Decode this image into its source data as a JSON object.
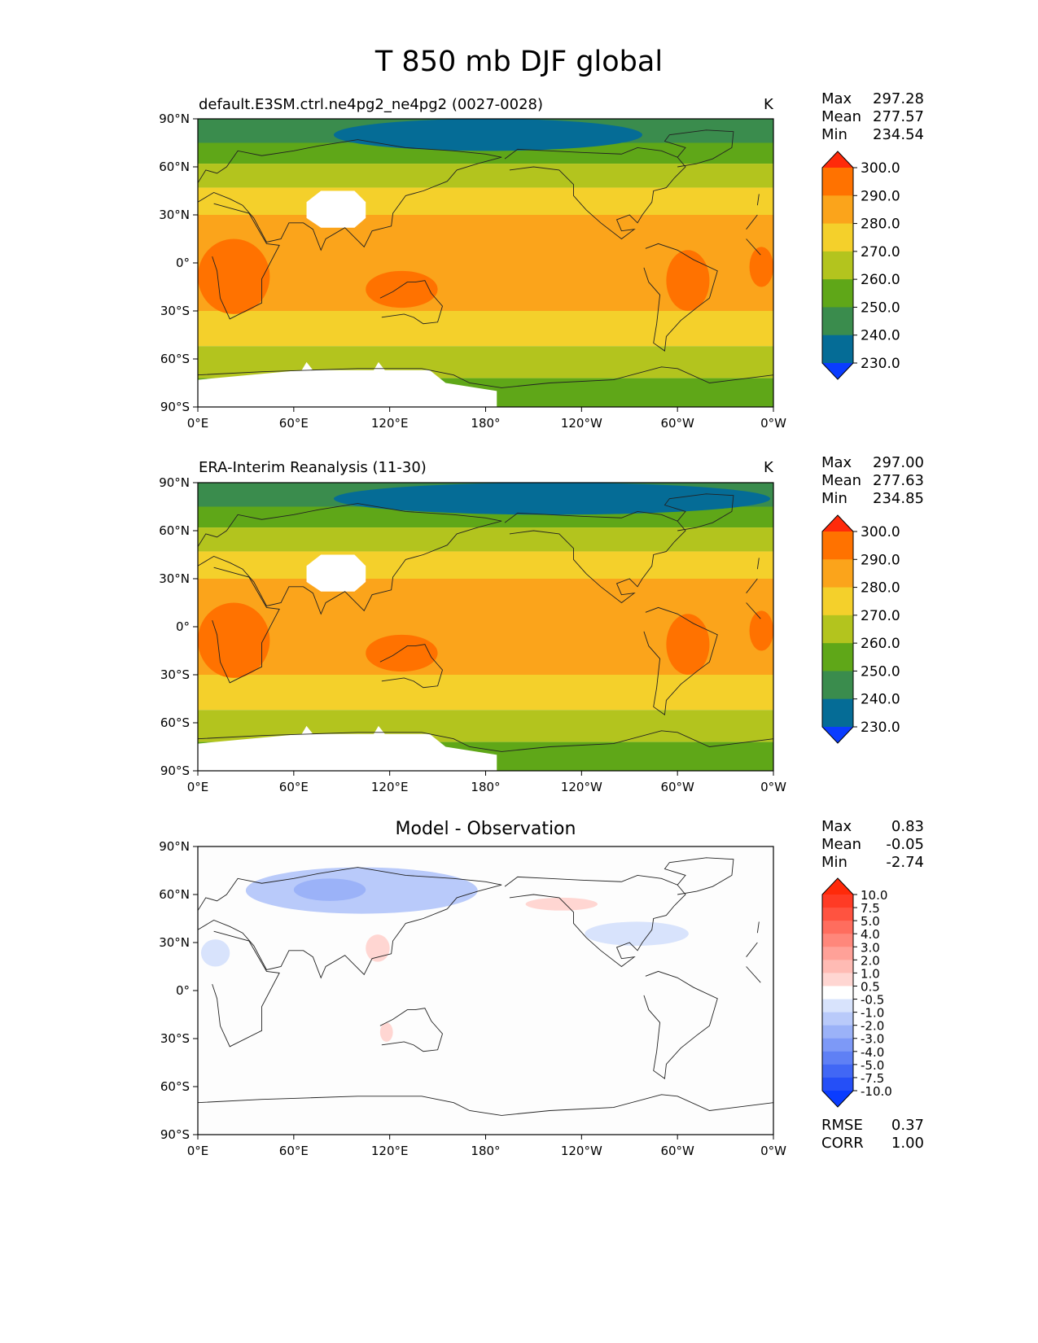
{
  "title": "T 850 mb DJF global",
  "panels": [
    {
      "title": "default.E3SM.ctrl.ne4pg2_ne4pg2 (0027-0028)",
      "units": "K",
      "stats": [
        {
          "label": "Max",
          "value": "297.28"
        },
        {
          "label": "Mean",
          "value": "277.57"
        },
        {
          "label": "Min",
          "value": "234.54"
        }
      ]
    },
    {
      "title": "ERA-Interim Reanalysis (11-30)",
      "units": "K",
      "stats": [
        {
          "label": "Max",
          "value": "297.00"
        },
        {
          "label": "Mean",
          "value": "277.63"
        },
        {
          "label": "Min",
          "value": "234.85"
        }
      ]
    },
    {
      "title": "Model - Observation",
      "units": "",
      "stats": [
        {
          "label": "Max",
          "value": "0.83"
        },
        {
          "label": "Mean",
          "value": "-0.05"
        },
        {
          "label": "Min",
          "value": "-2.74"
        }
      ],
      "metrics": [
        {
          "label": "RMSE",
          "value": "0.37"
        },
        {
          "label": "CORR",
          "value": "1.00"
        }
      ]
    }
  ],
  "chart_data": [
    {
      "type": "heatmap",
      "panel": "model",
      "title": "default.E3SM.ctrl.ne4pg2_ne4pg2 (0027-0028)",
      "units": "K",
      "x_ticks": [
        "0°E",
        "60°E",
        "120°E",
        "180°",
        "120°W",
        "60°W",
        "0°W"
      ],
      "y_ticks": [
        "90°N",
        "60°N",
        "30°N",
        "0°",
        "30°S",
        "60°S",
        "90°S"
      ],
      "xlim": [
        0,
        360
      ],
      "ylim": [
        -90,
        90
      ],
      "zonal_bands": [
        {
          "lat_max": 90,
          "lat_min": 75,
          "level": 240
        },
        {
          "lat_max": 75,
          "lat_min": 62,
          "level": 250
        },
        {
          "lat_max": 62,
          "lat_min": 47,
          "level": 260
        },
        {
          "lat_max": 47,
          "lat_min": 30,
          "level": 270
        },
        {
          "lat_max": 30,
          "lat_min": -30,
          "level": 280
        },
        {
          "lat_max": -30,
          "lat_min": -52,
          "level": 270
        },
        {
          "lat_max": -52,
          "lat_min": -72,
          "level": 260
        },
        {
          "lat_max": -72,
          "lat_min": -90,
          "level": 250
        }
      ],
      "features": [
        {
          "name": "polar cold core",
          "lon": [
            85,
            278
          ],
          "lat": [
            70,
            90
          ],
          "level": 230
        },
        {
          "name": "Africa warm",
          "lon": [
            0,
            45
          ],
          "lat": [
            -32,
            15
          ],
          "level": 290
        },
        {
          "name": "South America warm",
          "lon": [
            293,
            320
          ],
          "lat": [
            -30,
            8
          ],
          "level": 290
        },
        {
          "name": "Australia warm",
          "lon": [
            105,
            150
          ],
          "lat": [
            -28,
            -5
          ],
          "level": 290
        },
        {
          "name": "East Pacific warm",
          "lon": [
            345,
            360
          ],
          "lat": [
            -15,
            10
          ],
          "level": 290
        }
      ],
      "colorbar": {
        "labels": [
          "300.0",
          "290.0",
          "280.0",
          "270.0",
          "260.0",
          "250.0",
          "240.0",
          "230.0"
        ],
        "colors": [
          "#ff2a0a",
          "#ff7200",
          "#fba41b",
          "#f4d02b",
          "#b3c41e",
          "#5fa718",
          "#3a8c4d",
          "#056c96",
          "#0a3cff"
        ]
      },
      "stats": {
        "max": 297.28,
        "mean": 277.57,
        "min": 234.54
      }
    },
    {
      "type": "heatmap",
      "panel": "observation",
      "title": "ERA-Interim Reanalysis (11-30)",
      "units": "K",
      "x_ticks": [
        "0°E",
        "60°E",
        "120°E",
        "180°",
        "120°W",
        "60°W",
        "0°W"
      ],
      "y_ticks": [
        "90°N",
        "60°N",
        "30°N",
        "0°",
        "30°S",
        "60°S",
        "90°S"
      ],
      "xlim": [
        0,
        360
      ],
      "ylim": [
        -90,
        90
      ],
      "zonal_bands": [
        {
          "lat_max": 90,
          "lat_min": 75,
          "level": 240
        },
        {
          "lat_max": 75,
          "lat_min": 62,
          "level": 250
        },
        {
          "lat_max": 62,
          "lat_min": 47,
          "level": 260
        },
        {
          "lat_max": 47,
          "lat_min": 30,
          "level": 270
        },
        {
          "lat_max": 30,
          "lat_min": -30,
          "level": 280
        },
        {
          "lat_max": -30,
          "lat_min": -52,
          "level": 270
        },
        {
          "lat_max": -52,
          "lat_min": -72,
          "level": 260
        },
        {
          "lat_max": -72,
          "lat_min": -90,
          "level": 250
        }
      ],
      "features": [
        {
          "name": "polar cold core",
          "lon": [
            85,
            358
          ],
          "lat": [
            70,
            90
          ],
          "level": 230
        },
        {
          "name": "Africa warm",
          "lon": [
            0,
            45
          ],
          "lat": [
            -32,
            15
          ],
          "level": 290
        },
        {
          "name": "South America warm",
          "lon": [
            293,
            320
          ],
          "lat": [
            -30,
            8
          ],
          "level": 290
        },
        {
          "name": "Australia warm",
          "lon": [
            105,
            150
          ],
          "lat": [
            -28,
            -5
          ],
          "level": 290
        },
        {
          "name": "East Pacific warm",
          "lon": [
            345,
            360
          ],
          "lat": [
            -15,
            10
          ],
          "level": 290
        }
      ],
      "colorbar": {
        "labels": [
          "300.0",
          "290.0",
          "280.0",
          "270.0",
          "260.0",
          "250.0",
          "240.0",
          "230.0"
        ],
        "colors": [
          "#ff2a0a",
          "#ff7200",
          "#fba41b",
          "#f4d02b",
          "#b3c41e",
          "#5fa718",
          "#3a8c4d",
          "#056c96",
          "#0a3cff"
        ]
      },
      "stats": {
        "max": 297.0,
        "mean": 277.63,
        "min": 234.85
      }
    },
    {
      "type": "heatmap",
      "panel": "difference",
      "title": "Model - Observation",
      "x_ticks": [
        "0°E",
        "60°E",
        "120°E",
        "180°",
        "120°W",
        "60°W",
        "0°W"
      ],
      "y_ticks": [
        "90°N",
        "60°N",
        "30°N",
        "0°",
        "30°S",
        "60°S",
        "90°S"
      ],
      "xlim": [
        0,
        360
      ],
      "ylim": [
        -90,
        90
      ],
      "anomalies": [
        {
          "name": "Siberia cold",
          "lon": [
            30,
            175
          ],
          "lat": [
            48,
            77
          ],
          "value": -1.0
        },
        {
          "name": "Siberia cold core",
          "lon": [
            60,
            105
          ],
          "lat": [
            56,
            70
          ],
          "value": -2.0
        },
        {
          "name": "Atlantic cold",
          "lon": [
            2,
            20
          ],
          "lat": [
            15,
            32
          ],
          "value": -0.5
        },
        {
          "name": "North America cold",
          "lon": [
            242,
            307
          ],
          "lat": [
            28,
            43
          ],
          "value": -0.5
        },
        {
          "name": "Pacific warm",
          "lon": [
            205,
            250
          ],
          "lat": [
            50,
            58
          ],
          "value": 0.5
        },
        {
          "name": "China warm",
          "lon": [
            105,
            120
          ],
          "lat": [
            18,
            35
          ],
          "value": 0.5
        },
        {
          "name": "Australia warm",
          "lon": [
            114,
            122
          ],
          "lat": [
            -32,
            -20
          ],
          "value": 0.5
        }
      ],
      "colorbar": {
        "labels": [
          "10.0",
          "7.5",
          "5.0",
          "4.0",
          "3.0",
          "2.0",
          "1.0",
          "0.5",
          "-0.5",
          "-1.0",
          "-2.0",
          "-3.0",
          "-4.0",
          "-5.0",
          "-7.5",
          "-10.0"
        ],
        "colors": [
          "#ff2a0a",
          "#ff3b25",
          "#ff5340",
          "#ff6d5e",
          "#ff877b",
          "#ffa198",
          "#ffbbb4",
          "#ffd6d2",
          "#ffffff",
          "#d8e3fc",
          "#b9cafa",
          "#9bb2f8",
          "#7d99f7",
          "#5f80f5",
          "#4167f5",
          "#254ff7",
          "#0a3cff"
        ]
      },
      "stats": {
        "max": 0.83,
        "mean": -0.05,
        "min": -2.74
      },
      "rmse": 0.37,
      "corr": 1.0
    }
  ]
}
